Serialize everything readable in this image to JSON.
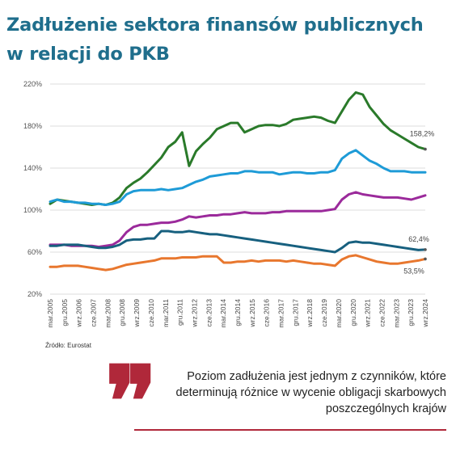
{
  "title_line1": "Zadłużenie sektora finansów publicznych",
  "title_line2": "w relacji do PKB",
  "source": "Źródło: Eurostat",
  "quote": "Poziom zadłużenia jest jednym z czynników, które determinują różnice w wycenie obligacji skarbowych poszczególnych krajów",
  "chart_data": {
    "type": "line",
    "title": "",
    "xlabel": "",
    "ylabel": "",
    "ylim": [
      20,
      220
    ],
    "yticks": [
      "220%",
      "180%",
      "140%",
      "100%",
      "60%",
      "20%"
    ],
    "ytick_values": [
      220,
      180,
      140,
      100,
      60,
      20
    ],
    "xtick_labels": [
      "mar.2005",
      "gru.2005",
      "wrz.2006",
      "cze.2007",
      "mar.2008",
      "gru.2008",
      "wrz.2009",
      "cze.2010",
      "mar.2011",
      "gru.2011",
      "wrz.2012",
      "cze.2013",
      "mar.2014",
      "gru.2014",
      "wrz.2015",
      "cze.2016",
      "mar.2017",
      "gru.2017",
      "wrz.2018",
      "cze.2019",
      "mar.2020",
      "gru.2020",
      "wrz.2021",
      "cze.2022",
      "mar.2023",
      "gru.2023",
      "wrz.2024"
    ],
    "grid": true,
    "annotations": [
      {
        "text": "158,2%",
        "series": 0
      },
      {
        "text": "62,4%",
        "series": 3
      },
      {
        "text": "53,5%",
        "series": 4
      }
    ],
    "series": [
      {
        "color": "#2a7a2a",
        "values": [
          106,
          110,
          109,
          108,
          107,
          106,
          105,
          106,
          105,
          107,
          112,
          121,
          126,
          130,
          136,
          143,
          150,
          160,
          165,
          174,
          142,
          156,
          163,
          169,
          177,
          180,
          183,
          183,
          174,
          177,
          180,
          181,
          181,
          180,
          182,
          186,
          187,
          188,
          189,
          188,
          185,
          183,
          194,
          205,
          212,
          210,
          198,
          190,
          182,
          176,
          172,
          168,
          164,
          160,
          158
        ]
      },
      {
        "color": "#1e9bd7",
        "values": [
          108,
          110,
          108,
          108,
          107,
          107,
          106,
          106,
          105,
          106,
          108,
          115,
          118,
          119,
          119,
          119,
          120,
          119,
          120,
          121,
          124,
          127,
          129,
          132,
          133,
          134,
          135,
          135,
          137,
          137,
          136,
          136,
          136,
          134,
          135,
          136,
          136,
          135,
          135,
          136,
          136,
          138,
          149,
          154,
          157,
          152,
          147,
          144,
          140,
          137,
          137,
          137,
          136,
          136,
          136
        ]
      },
      {
        "color": "#9b2a9b",
        "values": [
          67,
          67,
          67,
          66,
          66,
          66,
          66,
          65,
          66,
          67,
          71,
          79,
          84,
          86,
          86,
          87,
          88,
          88,
          89,
          91,
          94,
          93,
          94,
          95,
          95,
          96,
          96,
          97,
          98,
          97,
          97,
          97,
          98,
          98,
          99,
          99,
          99,
          99,
          99,
          99,
          100,
          101,
          110,
          115,
          117,
          115,
          114,
          113,
          112,
          112,
          112,
          111,
          110,
          112,
          114
        ]
      },
      {
        "color": "#17607f",
        "values": [
          66,
          66,
          67,
          67,
          67,
          66,
          65,
          64,
          64,
          65,
          67,
          71,
          72,
          72,
          73,
          73,
          80,
          80,
          79,
          79,
          80,
          79,
          78,
          77,
          77,
          76,
          75,
          74,
          73,
          72,
          71,
          70,
          69,
          68,
          67,
          66,
          65,
          64,
          63,
          62,
          61,
          60,
          64,
          69,
          70,
          69,
          69,
          68,
          67,
          66,
          65,
          64,
          63,
          62,
          62.4
        ]
      },
      {
        "color": "#e8772e",
        "values": [
          46,
          46,
          47,
          47,
          47,
          46,
          45,
          44,
          43,
          44,
          46,
          48,
          49,
          50,
          51,
          52,
          54,
          54,
          54,
          55,
          55,
          55,
          56,
          56,
          56,
          50,
          50,
          51,
          51,
          52,
          51,
          52,
          52,
          52,
          51,
          52,
          51,
          50,
          49,
          49,
          48,
          47,
          53,
          56,
          57,
          55,
          53,
          51,
          50,
          49,
          49,
          50,
          51,
          52,
          53.5
        ]
      }
    ]
  }
}
